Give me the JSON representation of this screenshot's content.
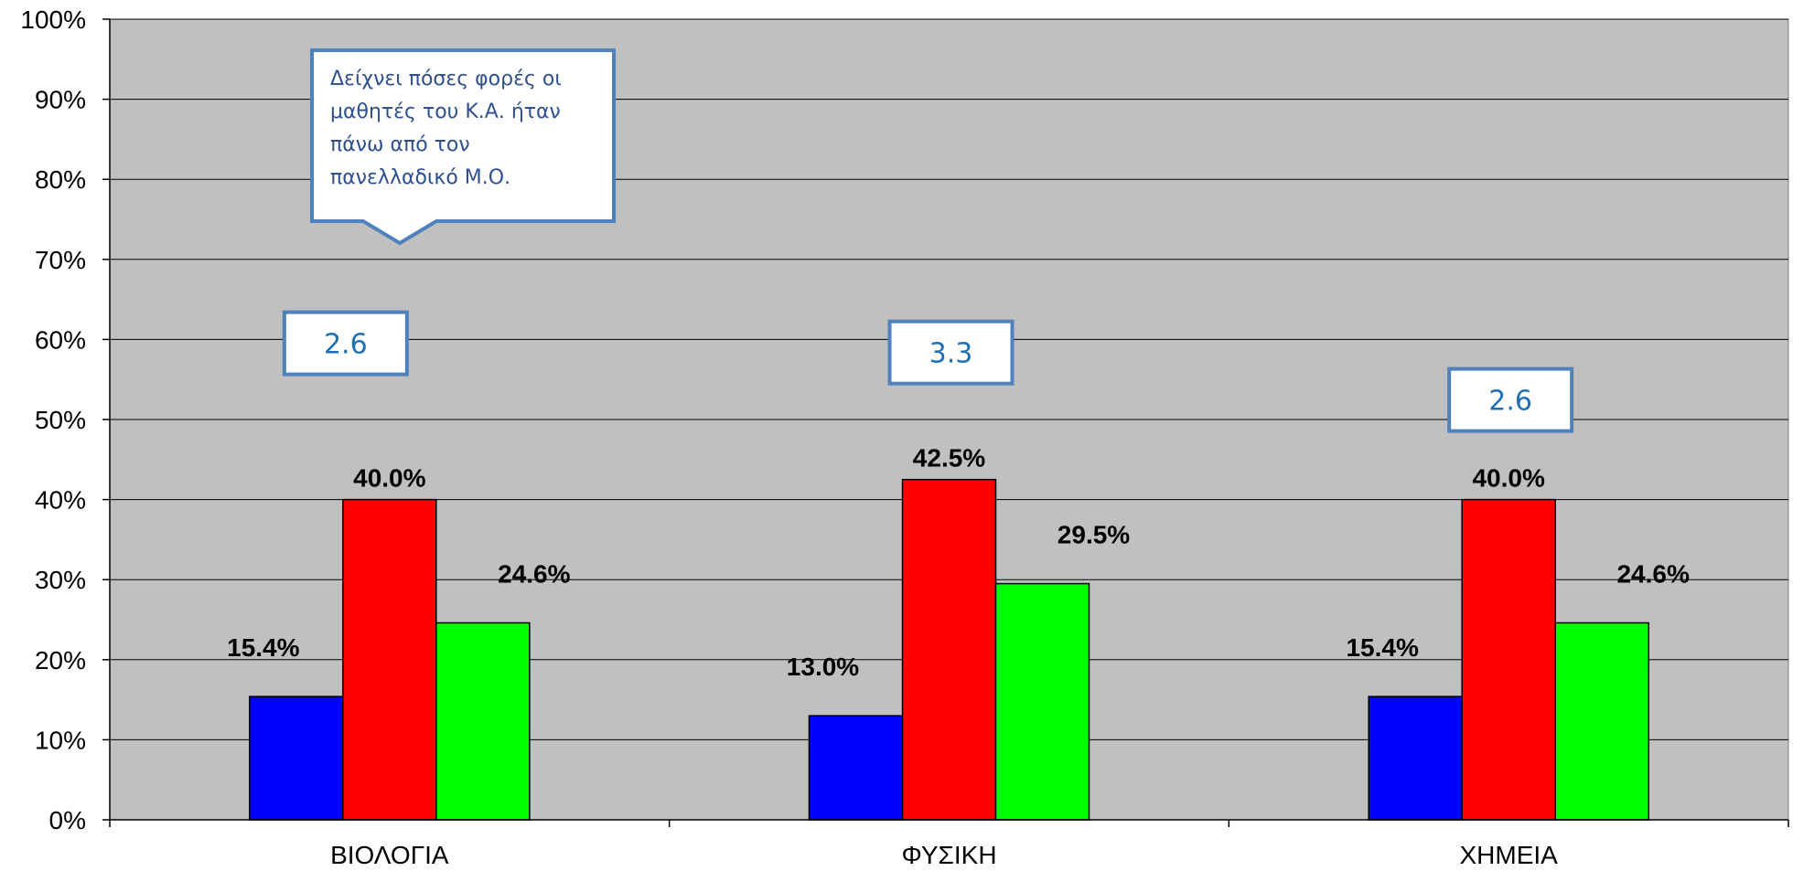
{
  "chart_data": {
    "type": "bar",
    "categories": [
      "ΒΙΟΛΟΓΙΑ",
      "ΦΥΣΙΚΗ",
      "ΧΗΜΕΙΑ"
    ],
    "series": [
      {
        "values": [
          15.4,
          13.0,
          15.4
        ],
        "color": "#0000ff"
      },
      {
        "values": [
          40.0,
          42.5,
          40.0
        ],
        "color": "#ff0000"
      },
      {
        "values": [
          24.6,
          29.5,
          24.6
        ],
        "color": "#00ff00"
      }
    ],
    "ylim": [
      0,
      100
    ],
    "yticks": [
      "0%",
      "10%",
      "20%",
      "30%",
      "40%",
      "50%",
      "60%",
      "70%",
      "80%",
      "90%",
      "100%"
    ],
    "data_labels": [
      [
        "15.4%",
        "13.0%",
        "15.4%"
      ],
      [
        "40.0%",
        "42.5%",
        "40.0%"
      ],
      [
        "24.6%",
        "29.5%",
        "24.6%"
      ]
    ],
    "grid": true,
    "plot_background": "#c0c0c0",
    "annotations": {
      "callout_lines": [
        "Δείχνει πόσες φορές οι",
        "μαθητές του Κ.Α. ήταν",
        "πάνω από τον",
        "πανελλαδικό Μ.Ο."
      ],
      "ratio_boxes": [
        "2.6",
        "3.3",
        "2.6"
      ],
      "box_border_color": "#4f81bd"
    }
  }
}
